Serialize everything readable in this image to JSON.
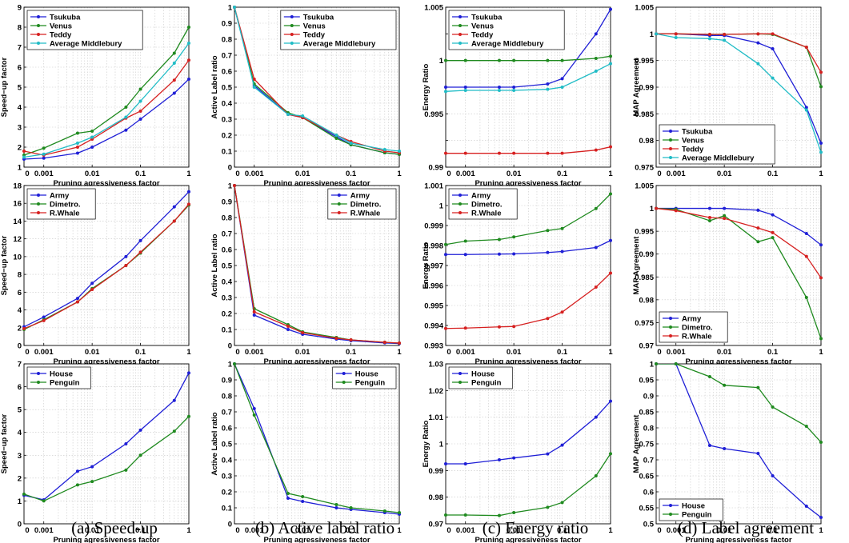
{
  "colors": {
    "blue": "#1f1fd6",
    "green": "#1f8a1f",
    "red": "#d62020",
    "cyan": "#20bcc6"
  },
  "chart_data": [
    {
      "type": "line",
      "col": 0,
      "row": 0,
      "xlabel": "Pruning agressiveness factor",
      "ylabel": "Speed−up factor",
      "ylim": [
        1,
        9
      ],
      "yticks": [
        "1",
        "2",
        "3",
        "4",
        "5",
        "6",
        "7",
        "8",
        "9"
      ],
      "xticks": [
        "0",
        "0.001",
        "0.01",
        "0.1",
        "1"
      ],
      "legend": "top-left",
      "x": [
        0,
        0.001,
        0.005,
        0.01,
        0.05,
        0.1,
        0.5,
        1
      ],
      "series": [
        {
          "name": "Tsukuba",
          "color": "blue",
          "values": [
            1.4,
            1.45,
            1.7,
            2.0,
            2.85,
            3.4,
            4.7,
            5.4
          ]
        },
        {
          "name": "Venus",
          "color": "green",
          "values": [
            1.6,
            1.95,
            2.7,
            2.8,
            4.0,
            4.9,
            6.7,
            8.0
          ]
        },
        {
          "name": "Teddy",
          "color": "red",
          "values": [
            1.8,
            1.6,
            2.0,
            2.4,
            3.45,
            3.8,
            5.35,
            6.35
          ]
        },
        {
          "name": "Average Middlebury",
          "color": "cyan",
          "values": [
            1.5,
            1.65,
            2.2,
            2.5,
            3.5,
            4.3,
            6.2,
            7.2
          ]
        }
      ]
    },
    {
      "type": "line",
      "col": 1,
      "row": 0,
      "xlabel": "Pruning agressiveness factor",
      "ylabel": "Active Label ratio",
      "ylim": [
        0,
        1
      ],
      "yticks": [
        "0",
        "0.1",
        "0.2",
        "0.3",
        "0.4",
        "0.5",
        "0.6",
        "0.7",
        "0.8",
        "0.9",
        "1"
      ],
      "xticks": [
        "0",
        "0.001",
        "0.01",
        "0.1",
        "1"
      ],
      "legend": "top-right",
      "x": [
        0,
        0.001,
        0.005,
        0.01,
        0.05,
        0.1,
        0.5,
        1
      ],
      "series": [
        {
          "name": "Tsukuba",
          "color": "blue",
          "values": [
            1.0,
            0.51,
            0.33,
            0.31,
            0.19,
            0.14,
            0.09,
            0.08
          ]
        },
        {
          "name": "Venus",
          "color": "green",
          "values": [
            1.0,
            0.52,
            0.34,
            0.31,
            0.18,
            0.14,
            0.09,
            0.08
          ]
        },
        {
          "name": "Teddy",
          "color": "red",
          "values": [
            1.0,
            0.55,
            0.33,
            0.31,
            0.2,
            0.16,
            0.1,
            0.09
          ]
        },
        {
          "name": "Average Middlebury",
          "color": "cyan",
          "values": [
            1.0,
            0.5,
            0.33,
            0.32,
            0.2,
            0.15,
            0.11,
            0.1
          ]
        }
      ]
    },
    {
      "type": "line",
      "col": 2,
      "row": 0,
      "xlabel": "Pruning agressiveness factor",
      "ylabel": "Energy Ratio",
      "ylim": [
        0.99,
        1.005
      ],
      "yticks": [
        "0.99",
        "",
        "0.995",
        "",
        "1",
        "",
        "1.005"
      ],
      "xticks": [
        "0",
        "0.001",
        "0.01",
        "0.1",
        "1"
      ],
      "legend": "top-left",
      "x": [
        0,
        0.001,
        0.005,
        0.01,
        0.05,
        0.1,
        0.5,
        1
      ],
      "series": [
        {
          "name": "Tsukuba",
          "color": "blue",
          "values": [
            0.9975,
            0.9975,
            0.9975,
            0.9975,
            0.9978,
            0.9983,
            1.0025,
            1.0048
          ]
        },
        {
          "name": "Venus",
          "color": "green",
          "values": [
            1.0,
            1.0,
            1.0,
            1.0,
            1.0,
            1.0,
            1.0002,
            1.0004
          ]
        },
        {
          "name": "Teddy",
          "color": "red",
          "values": [
            0.9913,
            0.9913,
            0.9913,
            0.9913,
            0.9913,
            0.9913,
            0.9916,
            0.9919
          ]
        },
        {
          "name": "Average Middlebury",
          "color": "cyan",
          "values": [
            0.9971,
            0.9972,
            0.9972,
            0.9972,
            0.9973,
            0.9975,
            0.999,
            0.9997
          ]
        }
      ]
    },
    {
      "type": "line",
      "col": 3,
      "row": 0,
      "xlabel": "",
      "ylabel": "MAP Agreement",
      "ylim": [
        0.975,
        1.005
      ],
      "yticks": [
        "0.975",
        "0.98",
        "0.985",
        "0.99",
        "0.995",
        "1",
        "1.005"
      ],
      "xticks": [
        "0",
        "0.001",
        "0.01",
        "0.1",
        "1"
      ],
      "legend": "bottom-left",
      "x": [
        0,
        0.001,
        0.005,
        0.01,
        0.05,
        0.1,
        0.5,
        1
      ],
      "series": [
        {
          "name": "Tsukuba",
          "color": "blue",
          "values": [
            1.0,
            1.0,
            0.9997,
            0.9997,
            0.9983,
            0.9972,
            0.9862,
            0.9795
          ]
        },
        {
          "name": "Venus",
          "color": "green",
          "values": [
            1.0,
            1.0,
            0.9999,
            0.9999,
            1.0,
            0.9999,
            0.9975,
            0.9901
          ]
        },
        {
          "name": "Teddy",
          "color": "red",
          "values": [
            1.0,
            1.0,
            0.9999,
            0.9999,
            1.0,
            1.0,
            0.9975,
            0.9928
          ]
        },
        {
          "name": "Average Middlebury",
          "color": "cyan",
          "values": [
            1.0,
            0.9993,
            0.9991,
            0.9988,
            0.9944,
            0.9917,
            0.9857,
            0.9778
          ]
        }
      ]
    },
    {
      "type": "line",
      "col": 0,
      "row": 1,
      "xlabel": "Pruning agressiveness factor",
      "ylabel": "Speed−up factor",
      "ylim": [
        0,
        18
      ],
      "yticks": [
        "0",
        "2",
        "4",
        "6",
        "8",
        "10",
        "12",
        "14",
        "16",
        "18"
      ],
      "xticks": [
        "0",
        "0.001",
        "0.01",
        "0.1",
        "1"
      ],
      "legend": "top-left",
      "x": [
        0,
        0.001,
        0.005,
        0.01,
        0.05,
        0.1,
        0.5,
        1
      ],
      "series": [
        {
          "name": "Army",
          "color": "blue",
          "values": [
            2.1,
            3.2,
            5.3,
            7.0,
            10.0,
            11.8,
            15.6,
            17.3
          ]
        },
        {
          "name": "Dimetro.",
          "color": "green",
          "values": [
            1.8,
            2.9,
            4.9,
            6.4,
            9.0,
            10.4,
            14.0,
            15.8
          ]
        },
        {
          "name": "R.Whale",
          "color": "red",
          "values": [
            1.9,
            2.8,
            4.9,
            6.3,
            9.0,
            10.5,
            14.0,
            15.9
          ]
        }
      ]
    },
    {
      "type": "line",
      "col": 1,
      "row": 1,
      "xlabel": "Pruning agressiveness factor",
      "ylabel": "Active Label ratio",
      "ylim": [
        0,
        1
      ],
      "yticks": [
        "0",
        "0.1",
        "0.2",
        "0.3",
        "0.4",
        "0.5",
        "0.6",
        "0.7",
        "0.8",
        "0.9",
        "1"
      ],
      "xticks": [
        "0",
        "0.001",
        "0.01",
        "0.1",
        "1"
      ],
      "legend": "top-right",
      "x": [
        0,
        0.001,
        0.005,
        0.01,
        0.05,
        0.1,
        0.5,
        1
      ],
      "series": [
        {
          "name": "Army",
          "color": "blue",
          "values": [
            1.0,
            0.19,
            0.1,
            0.07,
            0.04,
            0.03,
            0.016,
            0.012
          ]
        },
        {
          "name": "Dimetro.",
          "color": "green",
          "values": [
            1.0,
            0.23,
            0.13,
            0.085,
            0.05,
            0.035,
            0.02,
            0.015
          ]
        },
        {
          "name": "R.Whale",
          "color": "red",
          "values": [
            1.0,
            0.21,
            0.12,
            0.08,
            0.045,
            0.035,
            0.02,
            0.015
          ]
        }
      ]
    },
    {
      "type": "line",
      "col": 2,
      "row": 1,
      "xlabel": "Pruning agressiveness factor",
      "ylabel": "Energy Ratio",
      "ylim": [
        0.993,
        1.001
      ],
      "yticks": [
        "0.993",
        "0.994",
        "0.995",
        "0.996",
        "0.997",
        "0.998",
        "0.999",
        "1",
        "1.001"
      ],
      "xticks": [
        "0",
        "0.001",
        "0.01",
        "0.1",
        "1"
      ],
      "legend": "top-left",
      "x": [
        0,
        0.001,
        0.005,
        0.01,
        0.05,
        0.1,
        0.5,
        1
      ],
      "series": [
        {
          "name": "Army",
          "color": "blue",
          "values": [
            0.99755,
            0.99755,
            0.99757,
            0.99758,
            0.99765,
            0.9977,
            0.9979,
            0.99825
          ]
        },
        {
          "name": "Dimetro.",
          "color": "green",
          "values": [
            0.99805,
            0.99822,
            0.9983,
            0.99843,
            0.99875,
            0.99885,
            0.99985,
            1.00058
          ]
        },
        {
          "name": "R.Whale",
          "color": "red",
          "values": [
            0.99385,
            0.99387,
            0.99393,
            0.99395,
            0.99435,
            0.99467,
            0.99592,
            0.99662
          ]
        }
      ]
    },
    {
      "type": "line",
      "col": 3,
      "row": 1,
      "xlabel": "Pruning agressiveness factor",
      "ylabel": "MAP Agreement",
      "ylim": [
        0.97,
        1.005
      ],
      "yticks": [
        "0.97",
        "0.975",
        "0.98",
        "0.985",
        "0.99",
        "0.995",
        "1",
        "1.005"
      ],
      "xticks": [
        "0",
        "0.001",
        "0.01",
        "0.1",
        "1"
      ],
      "legend": "bottom-left",
      "x": [
        0,
        0.001,
        0.005,
        0.01,
        0.05,
        0.1,
        0.5,
        1
      ],
      "series": [
        {
          "name": "Army",
          "color": "blue",
          "values": [
            1.0,
            1.0,
            1.0,
            1.0,
            0.9996,
            0.9986,
            0.9945,
            0.992
          ]
        },
        {
          "name": "Dimetro.",
          "color": "green",
          "values": [
            1.0,
            0.9998,
            0.9973,
            0.9984,
            0.9927,
            0.9936,
            0.9805,
            0.9715
          ]
        },
        {
          "name": "R.Whale",
          "color": "red",
          "values": [
            1.0,
            0.9995,
            0.998,
            0.9978,
            0.9957,
            0.9947,
            0.9895,
            0.9848
          ]
        }
      ]
    },
    {
      "type": "line",
      "col": 0,
      "row": 2,
      "xlabel": "Pruning agressiveness factor",
      "ylabel": "Speed−up factor",
      "ylim": [
        0,
        7
      ],
      "yticks": [
        "0",
        "1",
        "2",
        "3",
        "4",
        "5",
        "6",
        "7"
      ],
      "xticks": [
        "0",
        "0.001",
        "0.01",
        "0.1",
        "1"
      ],
      "legend": "top-left",
      "x": [
        0,
        0.001,
        0.005,
        0.01,
        0.05,
        0.1,
        0.5,
        1
      ],
      "series": [
        {
          "name": "House",
          "color": "blue",
          "values": [
            1.25,
            1.05,
            2.3,
            2.5,
            3.5,
            4.1,
            5.4,
            6.6
          ]
        },
        {
          "name": "Penguin",
          "color": "green",
          "values": [
            1.3,
            1.0,
            1.7,
            1.85,
            2.35,
            3.0,
            4.05,
            4.7
          ]
        }
      ]
    },
    {
      "type": "line",
      "col": 1,
      "row": 2,
      "xlabel": "Pruning agressiveness factor",
      "ylabel": "Active Label ratio",
      "ylim": [
        0,
        1
      ],
      "yticks": [
        "0",
        "0.1",
        "0.2",
        "0.3",
        "0.4",
        "0.5",
        "0.6",
        "0.7",
        "0.8",
        "0.9",
        "1"
      ],
      "xticks": [
        "0",
        "0.001",
        "0.01",
        "0.1",
        "1"
      ],
      "legend": "top-right",
      "x": [
        0,
        0.001,
        0.005,
        0.01,
        0.05,
        0.1,
        0.5,
        1
      ],
      "series": [
        {
          "name": "House",
          "color": "blue",
          "values": [
            1.0,
            0.72,
            0.16,
            0.14,
            0.1,
            0.09,
            0.07,
            0.06
          ]
        },
        {
          "name": "Penguin",
          "color": "green",
          "values": [
            1.0,
            0.68,
            0.19,
            0.17,
            0.12,
            0.1,
            0.08,
            0.07
          ]
        }
      ]
    },
    {
      "type": "line",
      "col": 2,
      "row": 2,
      "xlabel": "Pruning agressiveness factor",
      "ylabel": "Energy Ratio",
      "ylim": [
        0.97,
        1.03
      ],
      "yticks": [
        "0.97",
        "0.98",
        "0.99",
        "1",
        "1.01",
        "1.02",
        "1.03"
      ],
      "xticks": [
        "0",
        "0.001",
        "0.01",
        "0.1",
        "1"
      ],
      "legend": "top-left",
      "x": [
        0,
        0.001,
        0.005,
        0.01,
        0.05,
        0.1,
        0.5,
        1
      ],
      "series": [
        {
          "name": "House",
          "color": "blue",
          "values": [
            0.9925,
            0.9925,
            0.994,
            0.9947,
            0.9962,
            0.9995,
            1.01,
            1.016
          ]
        },
        {
          "name": "Penguin",
          "color": "green",
          "values": [
            0.9733,
            0.9733,
            0.9731,
            0.9742,
            0.9762,
            0.978,
            0.988,
            0.9963
          ]
        }
      ]
    },
    {
      "type": "line",
      "col": 3,
      "row": 2,
      "xlabel": "Pruning agressiveness factor",
      "ylabel": "MAP Agreement",
      "ylim": [
        0.5,
        1
      ],
      "yticks": [
        "0.5",
        "0.55",
        "0.6",
        "0.65",
        "0.7",
        "0.75",
        "0.8",
        "0.85",
        "0.9",
        "0.95",
        "1"
      ],
      "xticks": [
        "0",
        "0.001",
        "0.01",
        "0.1",
        "1"
      ],
      "legend": "bottom-left",
      "x": [
        0,
        0.001,
        0.005,
        0.01,
        0.05,
        0.1,
        0.5,
        1
      ],
      "series": [
        {
          "name": "House",
          "color": "blue",
          "values": [
            1.0,
            1.0,
            0.745,
            0.735,
            0.72,
            0.65,
            0.555,
            0.52
          ]
        },
        {
          "name": "Penguin",
          "color": "green",
          "values": [
            1.0,
            1.0,
            0.96,
            0.933,
            0.926,
            0.865,
            0.805,
            0.755
          ]
        }
      ]
    }
  ],
  "captions": [
    "(a) Speed-up",
    "(b) Active label ratio",
    "(c) Energy ratio",
    "(d) Label agreement"
  ]
}
